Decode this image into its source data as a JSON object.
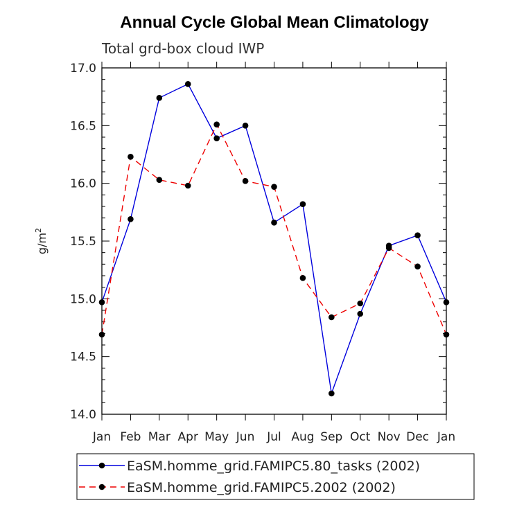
{
  "chart_data": {
    "type": "line",
    "title": "Annual Cycle Global Mean Climatology",
    "subtitle": "Total grd-box cloud IWP",
    "ylabel": "g/m",
    "ylabel_sup": "2",
    "xlabel": "",
    "categories": [
      "Jan",
      "Feb",
      "Mar",
      "Apr",
      "May",
      "Jun",
      "Jul",
      "Aug",
      "Sep",
      "Oct",
      "Nov",
      "Dec",
      "Jan"
    ],
    "ylim": [
      14.0,
      17.0
    ],
    "yticks": [
      14.0,
      14.5,
      15.0,
      15.5,
      16.0,
      16.5,
      17.0
    ],
    "ytick_labels": [
      "14.0",
      "14.5",
      "15.0",
      "15.5",
      "16.0",
      "16.5",
      "17.0"
    ],
    "grid": false,
    "legend_position": "bottom",
    "series": [
      {
        "name": "EaSM.homme_grid.FAMIPC5.80_tasks (2002)",
        "color": "#0000dd",
        "dash": "solid",
        "values": [
          14.97,
          15.69,
          16.74,
          16.86,
          16.39,
          16.5,
          15.66,
          15.82,
          14.18,
          14.87,
          15.46,
          15.55,
          14.97
        ]
      },
      {
        "name": "EaSM.homme_grid.FAMIPC5.2002 (2002)",
        "color": "#ee0000",
        "dash": "dashed",
        "values": [
          14.69,
          16.23,
          16.03,
          15.98,
          16.51,
          16.02,
          15.97,
          15.18,
          14.84,
          14.96,
          15.44,
          15.28,
          14.69
        ]
      }
    ]
  }
}
